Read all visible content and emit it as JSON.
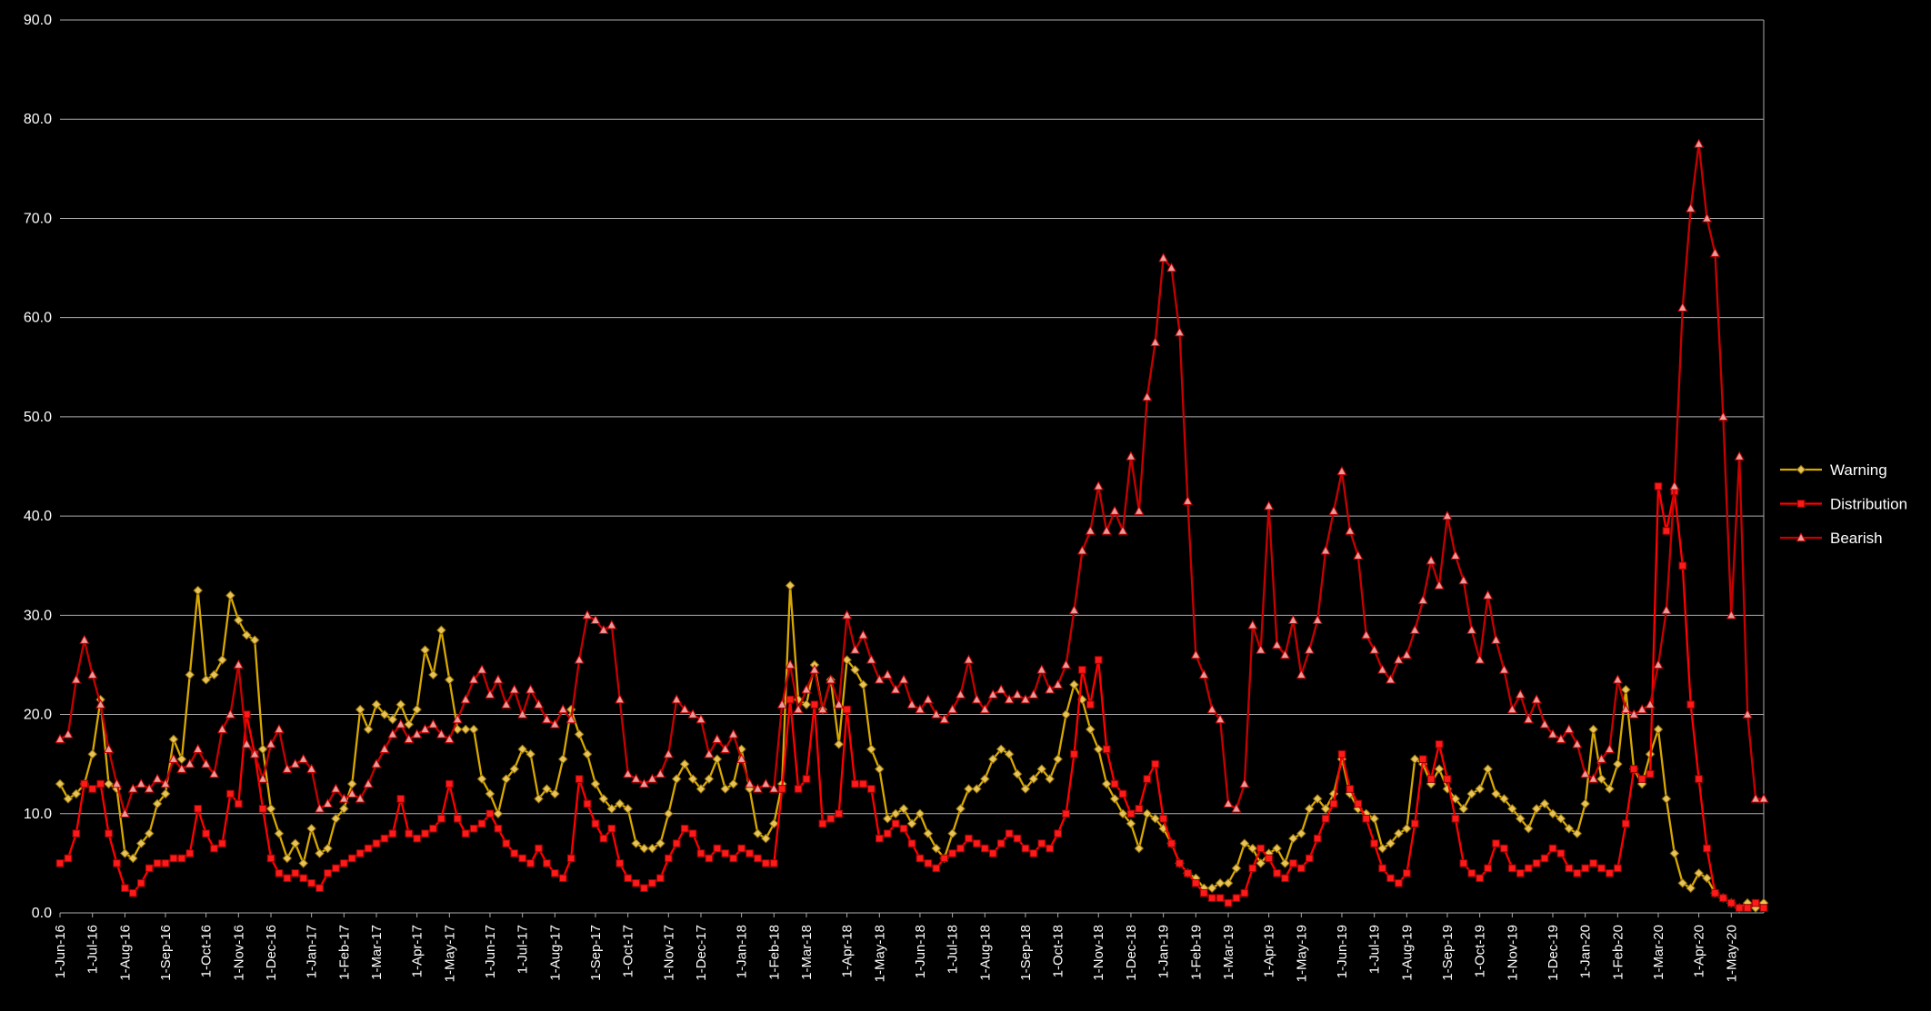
{
  "page": {
    "background": "#000000"
  },
  "chart_data": {
    "type": "line",
    "title": "",
    "grid": true,
    "legend_position": "right",
    "colors": {
      "background": "#000000",
      "grid": "#ACACAC",
      "axis_text": "#FFFFFF"
    },
    "y_axis": {
      "min": 0,
      "max": 90,
      "step": 10,
      "tick_labels": [
        "0.0",
        "10.0",
        "20.0",
        "30.0",
        "40.0",
        "50.0",
        "60.0",
        "70.0",
        "80.0",
        "90.0"
      ]
    },
    "x_tick_labels": [
      "1-Jun-16",
      "1-Jul-16",
      "1-Aug-16",
      "1-Sep-16",
      "1-Oct-16",
      "1-Nov-16",
      "1-Dec-16",
      "1-Jan-17",
      "1-Feb-17",
      "1-Mar-17",
      "1-Apr-17",
      "1-May-17",
      "1-Jun-17",
      "1-Jul-17",
      "1-Aug-17",
      "1-Sep-17",
      "1-Oct-17",
      "1-Nov-17",
      "1-Dec-17",
      "1-Jan-18",
      "1-Feb-18",
      "1-Mar-18",
      "1-Apr-18",
      "1-May-18",
      "1-Jun-18",
      "1-Jul-18",
      "1-Aug-18",
      "1-Sep-18",
      "1-Oct-18",
      "1-Nov-18",
      "1-Dec-18",
      "1-Jan-19",
      "1-Feb-19",
      "1-Mar-19",
      "1-Apr-19",
      "1-May-19",
      "1-Jun-19",
      "1-Jul-19",
      "1-Aug-19",
      "1-Sep-19",
      "1-Oct-19",
      "1-Nov-19",
      "1-Dec-19",
      "1-Jan-20",
      "1-Feb-20",
      "1-Mar-20",
      "1-Apr-20",
      "1-May-20"
    ],
    "weeks_per_month": [
      4,
      4,
      5,
      5,
      4,
      4,
      5,
      4,
      4,
      5,
      4,
      5,
      4,
      4,
      5,
      4,
      5,
      4,
      5,
      4,
      4,
      5,
      4,
      5,
      4,
      4,
      5,
      4,
      5,
      4,
      4,
      4,
      4,
      5,
      4,
      5,
      4,
      4,
      5,
      4,
      4,
      5,
      4,
      4,
      5,
      5,
      4,
      5
    ],
    "series": [
      {
        "name": "Warning",
        "color": "#D8A800",
        "marker": "diamond",
        "marker_fill": "#E8C35A",
        "marker_stroke": "#8F6D00",
        "values": [
          13,
          11.5,
          12,
          13,
          16,
          21.5,
          13,
          12.5,
          6,
          5.5,
          7,
          8,
          11,
          12,
          17.5,
          15.5,
          24,
          32.5,
          23.5,
          24,
          25.5,
          32,
          29.5,
          28,
          27.5,
          16.5,
          10.5,
          8,
          5.5,
          7,
          5,
          8.5,
          6,
          6.5,
          9.5,
          10.5,
          13,
          20.5,
          18.5,
          21,
          20,
          19.5,
          21,
          19,
          20.5,
          26.5,
          24,
          28.5,
          23.5,
          18.5,
          18.5,
          18.5,
          13.5,
          12,
          10,
          13.5,
          14.5,
          16.5,
          16,
          11.5,
          12.5,
          12,
          15.5,
          20.5,
          18,
          16,
          13,
          11.5,
          10.5,
          11,
          10.5,
          7,
          6.5,
          6.5,
          7,
          10,
          13.5,
          15,
          13.5,
          12.5,
          13.5,
          15.5,
          12.5,
          13,
          16.5,
          12.5,
          8,
          7.5,
          9,
          13,
          33,
          21.5,
          21,
          25,
          20.5,
          23.5,
          17,
          25.5,
          24.5,
          23,
          16.5,
          14.5,
          9.5,
          10,
          10.5,
          9,
          10,
          8,
          6.5,
          5.5,
          8,
          10.5,
          12.5,
          12.5,
          13.5,
          15.5,
          16.5,
          16,
          14,
          12.5,
          13.5,
          14.5,
          13.5,
          15.5,
          20,
          23,
          21.5,
          18.5,
          16.5,
          13,
          11.5,
          10,
          9,
          6.5,
          10,
          9.5,
          8.5,
          7,
          5,
          4,
          3.5,
          2.5,
          2.5,
          3,
          3,
          4.5,
          7,
          6.5,
          5,
          6,
          6.5,
          5,
          7.5,
          8,
          10.5,
          11.5,
          10.5,
          12,
          15.5,
          12,
          10.5,
          10,
          9.5,
          6.5,
          7,
          8,
          8.5,
          15.5,
          15,
          13,
          14.5,
          12.5,
          11.5,
          10.5,
          12,
          12.5,
          14.5,
          12,
          11.5,
          10.5,
          9.5,
          8.5,
          10.5,
          11,
          10,
          9.5,
          8.5,
          8,
          11,
          18.5,
          13.5,
          12.5,
          15,
          22.5,
          14.5,
          13,
          16,
          18.5,
          11.5,
          6,
          3,
          2.5,
          4,
          3.5,
          2,
          1.5,
          1,
          0.5,
          1,
          0.5,
          1
        ]
      },
      {
        "name": "Distribution",
        "color": "#FF0000",
        "marker": "square",
        "marker_fill": "#FF1A1A",
        "marker_stroke": "#990000",
        "values": [
          5,
          5.5,
          8,
          13,
          12.5,
          13,
          8,
          5,
          2.5,
          2,
          3,
          4.5,
          5,
          5,
          5.5,
          5.5,
          6,
          10.5,
          8,
          6.5,
          7,
          12,
          11,
          20,
          16,
          10.5,
          5.5,
          4,
          3.5,
          4,
          3.5,
          3,
          2.5,
          4,
          4.5,
          5,
          5.5,
          6,
          6.5,
          7,
          7.5,
          8,
          11.5,
          8,
          7.5,
          8,
          8.5,
          9.5,
          13,
          9.5,
          8,
          8.5,
          9,
          10,
          8.5,
          7,
          6,
          5.5,
          5,
          6.5,
          5,
          4,
          3.5,
          5.5,
          13.5,
          11,
          9,
          7.5,
          8.5,
          5,
          3.5,
          3,
          2.5,
          3,
          3.5,
          5.5,
          7,
          8.5,
          8,
          6,
          5.5,
          6.5,
          6,
          5.5,
          6.5,
          6,
          5.5,
          5,
          5,
          12.5,
          21.5,
          12.5,
          13.5,
          21,
          9,
          9.5,
          10,
          20.5,
          13,
          13,
          12.5,
          7.5,
          8,
          9,
          8.5,
          7,
          5.5,
          5,
          4.5,
          5.5,
          6,
          6.5,
          7.5,
          7,
          6.5,
          6,
          7,
          8,
          7.5,
          6.5,
          6,
          7,
          6.5,
          8,
          10,
          16,
          24.5,
          21,
          25.5,
          16.5,
          13,
          12,
          10,
          10.5,
          13.5,
          15,
          9.5,
          7,
          5,
          4,
          3,
          2,
          1.5,
          1.5,
          1,
          1.5,
          2,
          4.5,
          6.5,
          5.5,
          4,
          3.5,
          5,
          4.5,
          5.5,
          7.5,
          9.5,
          11,
          16,
          12.5,
          11,
          9.5,
          7,
          4.5,
          3.5,
          3,
          4,
          9,
          15.5,
          13.5,
          17,
          13.5,
          9.5,
          5,
          4,
          3.5,
          4.5,
          7,
          6.5,
          4.5,
          4,
          4.5,
          5,
          5.5,
          6.5,
          6,
          4.5,
          4,
          4.5,
          5,
          4.5,
          4,
          4.5,
          9,
          14.5,
          13.5,
          14,
          43,
          38.5,
          42.5,
          35,
          21,
          13.5,
          6.5,
          2,
          1.5,
          1,
          0.5,
          0.5,
          1,
          0.5
        ]
      },
      {
        "name": "Bearish",
        "color": "#C80000",
        "marker": "triangle",
        "marker_fill": "#E89B9B",
        "marker_stroke": "#C80000",
        "values": [
          17.5,
          18,
          23.5,
          27.5,
          24,
          21,
          16.5,
          13,
          10,
          12.5,
          13,
          12.5,
          13.5,
          13,
          15.5,
          14.5,
          15,
          16.5,
          15,
          14,
          18.5,
          20,
          25,
          17,
          16,
          13.5,
          17,
          18.5,
          14.5,
          15,
          15.5,
          14.5,
          10.5,
          11,
          12.5,
          11.5,
          12,
          11.5,
          13,
          15,
          16.5,
          18,
          19,
          17.5,
          18,
          18.5,
          19,
          18,
          17.5,
          19.5,
          21.5,
          23.5,
          24.5,
          22,
          23.5,
          21,
          22.5,
          20,
          22.5,
          21,
          19.5,
          19,
          20.5,
          19.5,
          25.5,
          30,
          29.5,
          28.5,
          29,
          21.5,
          14,
          13.5,
          13,
          13.5,
          14,
          16,
          21.5,
          20.5,
          20,
          19.5,
          16,
          17.5,
          16.5,
          18,
          15.5,
          13,
          12.5,
          13,
          12.5,
          21,
          25,
          20.5,
          22.5,
          24.5,
          20.5,
          23.5,
          21,
          30,
          26.5,
          28,
          25.5,
          23.5,
          24,
          22.5,
          23.5,
          21,
          20.5,
          21.5,
          20,
          19.5,
          20.5,
          22,
          25.5,
          21.5,
          20.5,
          22,
          22.5,
          21.5,
          22,
          21.5,
          22,
          24.5,
          22.5,
          23,
          25,
          30.5,
          36.5,
          38.5,
          43,
          38.5,
          40.5,
          38.5,
          46,
          40.5,
          52,
          57.5,
          66,
          65,
          58.5,
          41.5,
          26,
          24,
          20.5,
          19.5,
          11,
          10.5,
          13,
          29,
          26.5,
          41,
          27,
          26,
          29.5,
          24,
          26.5,
          29.5,
          36.5,
          40.5,
          44.5,
          38.5,
          36,
          28,
          26.5,
          24.5,
          23.5,
          25.5,
          26,
          28.5,
          31.5,
          35.5,
          33,
          40,
          36,
          33.5,
          28.5,
          25.5,
          32,
          27.5,
          24.5,
          20.5,
          22,
          19.5,
          21.5,
          19,
          18,
          17.5,
          18.5,
          17,
          14,
          13.5,
          15.5,
          16.5,
          23.5,
          20.5,
          20,
          20.5,
          21,
          25,
          30.5,
          43,
          61,
          71,
          77.5,
          70,
          66.5,
          50,
          30,
          46,
          20,
          11.5,
          11.5
        ]
      }
    ]
  }
}
